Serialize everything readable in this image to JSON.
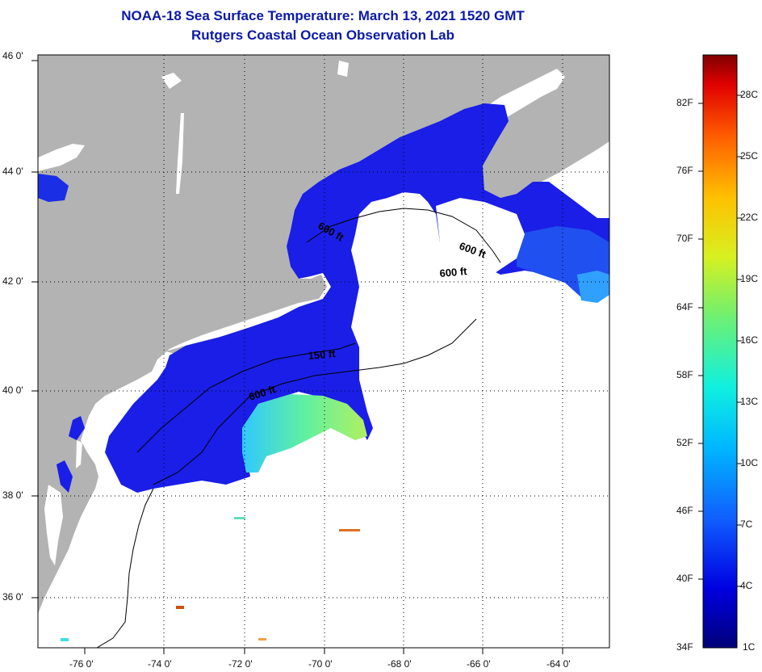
{
  "title": {
    "line1": "NOAA-18 Sea Surface Temperature:  March 13, 2021 1520 GMT",
    "line2": "Rutgers Coastal Ocean Observation Lab"
  },
  "axes": {
    "lat_labels": [
      "46 0'",
      "44 0'",
      "42 0'",
      "40 0'",
      "38 0'",
      "36 0'"
    ],
    "lon_labels": [
      "-76 0'",
      "-74 0'",
      "-72 0'",
      "-70 0'",
      "-68 0'",
      "-66 0'",
      "-64 0'"
    ]
  },
  "contours": {
    "labels": [
      "600 ft",
      "600 ft",
      "600 ft",
      "150 ft",
      "600 ft"
    ]
  },
  "colorbar": {
    "fahrenheit": [
      "82F",
      "76F",
      "70F",
      "64F",
      "58F",
      "52F",
      "46F",
      "40F",
      "34F"
    ],
    "celsius": [
      "28C",
      "25C",
      "22C",
      "19C",
      "16C",
      "13C",
      "10C",
      "7C",
      "4C",
      "1C"
    ]
  },
  "colors": {
    "land": "#b3b3b3",
    "water_cold": "#1a1ee6",
    "water_warm": "#4fe0c0",
    "title": "#0b1aa6"
  }
}
